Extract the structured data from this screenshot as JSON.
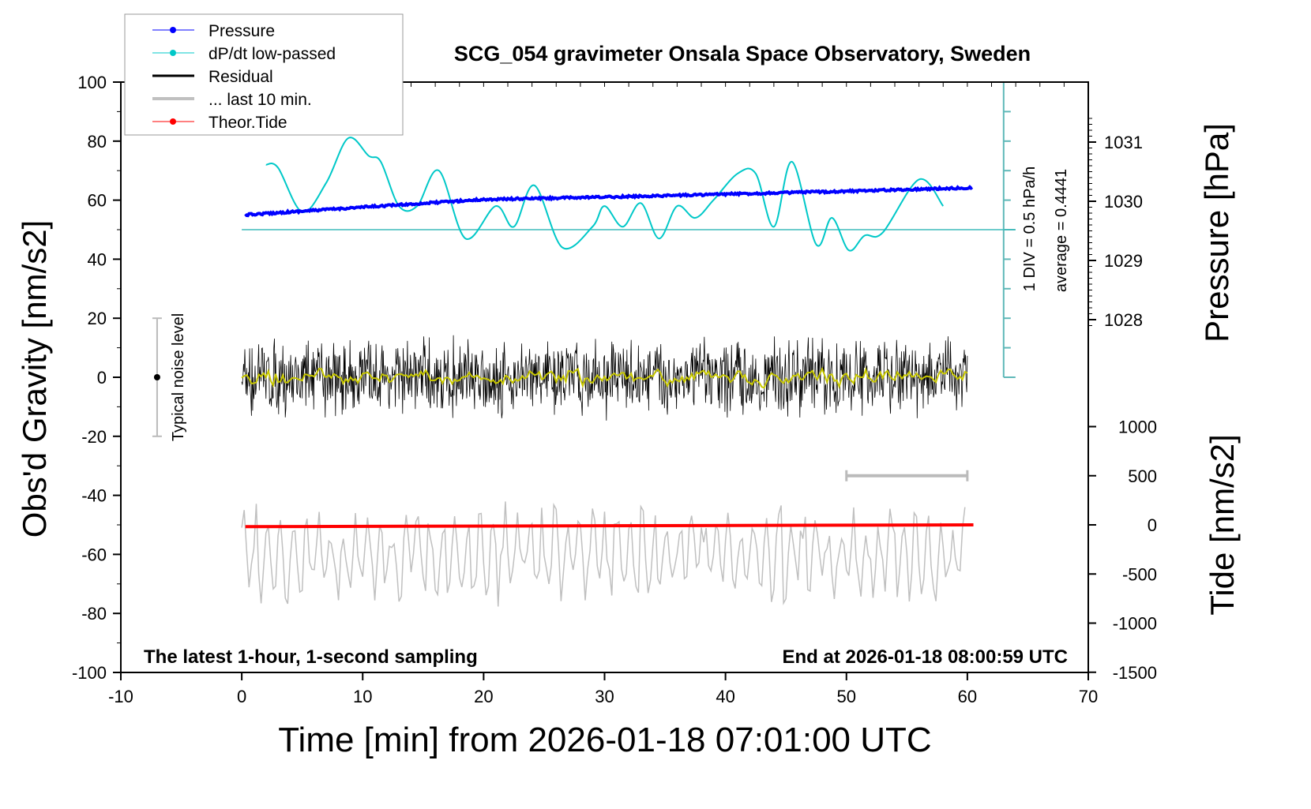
{
  "chart_data": {
    "type": "line",
    "title": "SCG_054 gravimeter Onsala Space Observatory, Sweden",
    "xlabel": "Time [min] from 2026-01-18 07:01:00 UTC",
    "ylabel_left": "Obs'd Gravity [nm/s2]",
    "ylabel_pressure": "Pressure [hPa]",
    "ylabel_tide": "Tide [nm/s2]",
    "xlim": [
      -10,
      70
    ],
    "ylim": [
      -100,
      100
    ],
    "x_ticks": [
      "-10",
      "0",
      "10",
      "20",
      "30",
      "40",
      "50",
      "60",
      "70"
    ],
    "y_ticks": [
      "100",
      "80",
      "60",
      "40",
      "20",
      "0",
      "-20",
      "-40",
      "-60",
      "-80",
      "-100"
    ],
    "pressure_ticks": [
      "1031",
      "1030",
      "1029",
      "1028"
    ],
    "tide_ticks": [
      "1000",
      "500",
      "0",
      "-500",
      "-1000",
      "-1500"
    ],
    "legend": {
      "position": "top-left",
      "entries": [
        {
          "label": "Pressure",
          "color": "#0000ff"
        },
        {
          "label": "dP/dt low-passed",
          "color": "#00c8c8"
        },
        {
          "label": "Residual",
          "color": "#000000"
        },
        {
          "label": "... last 10 min.",
          "color": "#c0c0c0"
        },
        {
          "label": "Theor.Tide",
          "color": "#ff0000"
        }
      ]
    },
    "annotations": {
      "bottom_left": "The latest 1-hour, 1-second sampling",
      "bottom_right": "End at 2026-01-18 08:00:59 UTC",
      "noise_label": "Typical noise level",
      "div_label": "1 DIV = 0.5 hPa/h",
      "average_label": "average = 0.4441"
    },
    "series": [
      {
        "name": "Pressure",
        "unit": "hPa",
        "x": [
          0.3,
          10,
          20,
          30,
          40,
          50,
          60.5
        ],
        "values": [
          1029.77,
          1029.9,
          1030.03,
          1030.07,
          1030.12,
          1030.17,
          1030.23
        ]
      },
      {
        "name": "dP/dt low-passed",
        "unit": "plot",
        "baseline": 50,
        "x": [
          2,
          3,
          5,
          7,
          8.8,
          10.5,
          11.5,
          13,
          14.5,
          16.3,
          18.5,
          21,
          22.5,
          24.2,
          26.5,
          29,
          30,
          31.5,
          33,
          34.5,
          36,
          37.5,
          39,
          41,
          42.5,
          44,
          45.5,
          47.5,
          48.8,
          50.2,
          51.5,
          53,
          56,
          58
        ],
        "values": [
          72,
          71,
          56,
          66,
          81,
          75,
          73,
          58,
          58,
          70,
          47,
          58,
          51,
          65,
          44,
          51,
          58,
          51,
          59,
          47,
          58,
          54,
          60,
          69,
          69,
          51,
          73,
          45,
          54,
          43,
          48,
          49,
          67,
          58
        ]
      },
      {
        "name": "Residual",
        "unit": "nm/s2",
        "x_range": [
          0,
          60
        ],
        "center": 0,
        "amplitude": 15
      },
      {
        "name": "... last 10 min.",
        "unit": "plot offset",
        "x_range": [
          0,
          60
        ],
        "center": -60,
        "amplitude": 18
      },
      {
        "name": "Theor.Tide",
        "unit": "nm/s2",
        "x": [
          0.3,
          60.5
        ],
        "values": [
          -18,
          0
        ]
      }
    ],
    "noise_level": {
      "x": -7,
      "range": [
        -20,
        20
      ]
    },
    "last10_bar": {
      "x_range": [
        50,
        60
      ],
      "tide_value": 500
    }
  }
}
